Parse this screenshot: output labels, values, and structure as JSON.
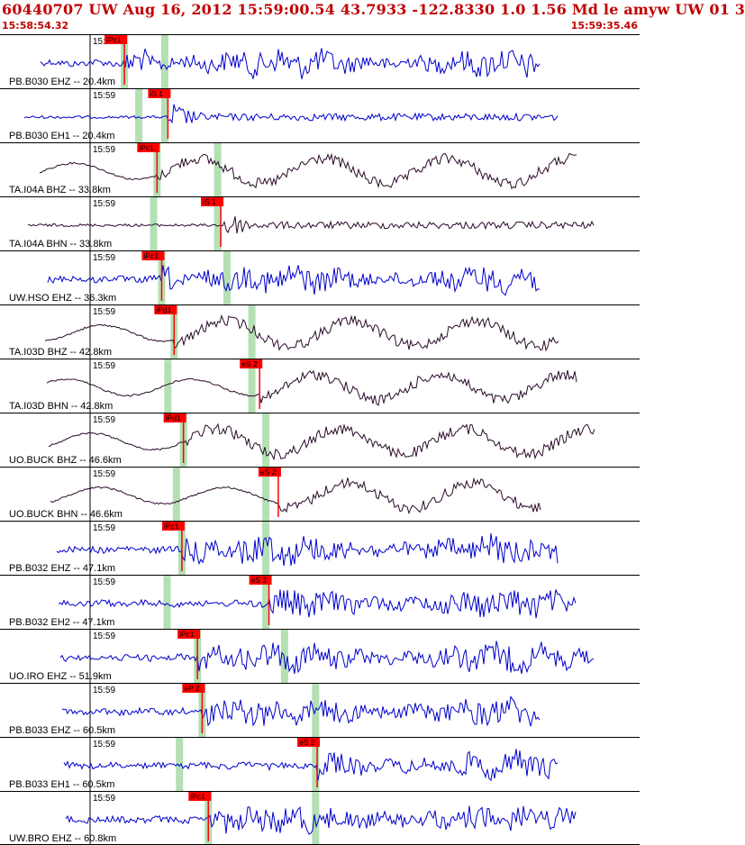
{
  "header": {
    "title": "60440707 UW Aug 16, 2012 15:59:00.54   43.7933 -122.8330  1.0 1.56 Md le amyw UW 01   3",
    "time_start": "15:58:54.32",
    "time_end": "15:59:35.46"
  },
  "colors": {
    "title_red": "#c00000",
    "pick_box": "#ff0000",
    "trace_blue": "#0000cc",
    "trace_dark": "#2a0a2a",
    "phase_marker_green": "#b4e0b4"
  },
  "chart_data": {
    "type": "seismogram",
    "time_axis": {
      "start": "15:58:54.32",
      "end": "15:59:35.46",
      "tick_label": "15:59"
    },
    "panels": [
      {
        "label": "PB.B030 EHZ -- 20.4km",
        "tick": "15:59",
        "pick": {
          "label": "iPc1",
          "t": 8.0
        },
        "s_marker_t": 10.6,
        "color": "blue",
        "style": "hf"
      },
      {
        "label": "PB.B030 EH1 -- 20.4km",
        "tick": "15:59",
        "pick": {
          "label": "iS 1",
          "t": 10.8
        },
        "s_marker_t": 10.6,
        "color": "blue",
        "style": "burst"
      },
      {
        "label": "TA.I04A BHZ -- 33.8km",
        "tick": "15:59",
        "pick": {
          "label": "iPc1",
          "t": 10.1
        },
        "s_marker_t": 14.0,
        "color": "dark",
        "style": "lf"
      },
      {
        "label": "TA.I04A BHN -- 33.8km",
        "tick": "15:59",
        "pick": {
          "label": "iS 1",
          "t": 14.2
        },
        "s_marker_t": 14.0,
        "color": "dark",
        "style": "burst"
      },
      {
        "label": "UW.HSO EHZ -- 36.3km",
        "tick": "15:59",
        "pick": {
          "label": "iPc1",
          "t": 10.4
        },
        "s_marker_t": 14.6,
        "color": "blue",
        "style": "hf"
      },
      {
        "label": "TA.I03D BHZ -- 42.8km",
        "tick": "15:59",
        "pick": {
          "label": "iPd1",
          "t": 11.2
        },
        "s_marker_t": 16.2,
        "color": "dark",
        "style": "lf"
      },
      {
        "label": "TA.I03D BHN -- 42.8km",
        "tick": "15:59",
        "pick": {
          "label": "eS 2",
          "t": 16.7
        },
        "s_marker_t": 16.2,
        "color": "dark",
        "style": "lf"
      },
      {
        "label": "UO.BUCK BHZ -- 46.6km",
        "tick": "15:59",
        "pick": {
          "label": "iPd1",
          "t": 11.8
        },
        "s_marker_t": 17.1,
        "color": "dark",
        "style": "lf"
      },
      {
        "label": "UO.BUCK BHN -- 46.6km",
        "tick": "15:59",
        "pick": {
          "label": "eS 2",
          "t": 17.9
        },
        "s_marker_t": 17.1,
        "color": "dark",
        "style": "lf"
      },
      {
        "label": "PB.B032 EHZ -- 47.1km",
        "tick": "15:59",
        "pick": {
          "label": "iPc1",
          "t": 11.7
        },
        "s_marker_t": 17.1,
        "color": "blue",
        "style": "hf"
      },
      {
        "label": "PB.B032 EH2 -- 47.1km",
        "tick": "15:59",
        "pick": {
          "label": "eS 2",
          "t": 17.3
        },
        "s_marker_t": 17.1,
        "color": "blue",
        "style": "hf"
      },
      {
        "label": "UO.IRO EHZ -- 51.9km",
        "tick": "15:59",
        "pick": {
          "label": "iPc1",
          "t": 12.7
        },
        "s_marker_t": 18.3,
        "color": "blue",
        "style": "hf"
      },
      {
        "label": "PB.B033 EHZ -- 60.5km",
        "tick": "15:59",
        "pick": {
          "label": "eP 2",
          "t": 13.0
        },
        "s_marker_t": 20.3,
        "color": "blue",
        "style": "hf"
      },
      {
        "label": "PB.B033 EH1 -- 60.5km",
        "tick": "15:59",
        "pick": {
          "label": "eS 2",
          "t": 20.4
        },
        "s_marker_t": 20.3,
        "color": "blue",
        "style": "hf"
      },
      {
        "label": "UW.BRO EHZ -- 60.8km",
        "tick": "15:59",
        "pick": {
          "label": "iPc1",
          "t": 13.4
        },
        "s_marker_t": 20.3,
        "color": "blue",
        "style": "hf"
      }
    ]
  }
}
